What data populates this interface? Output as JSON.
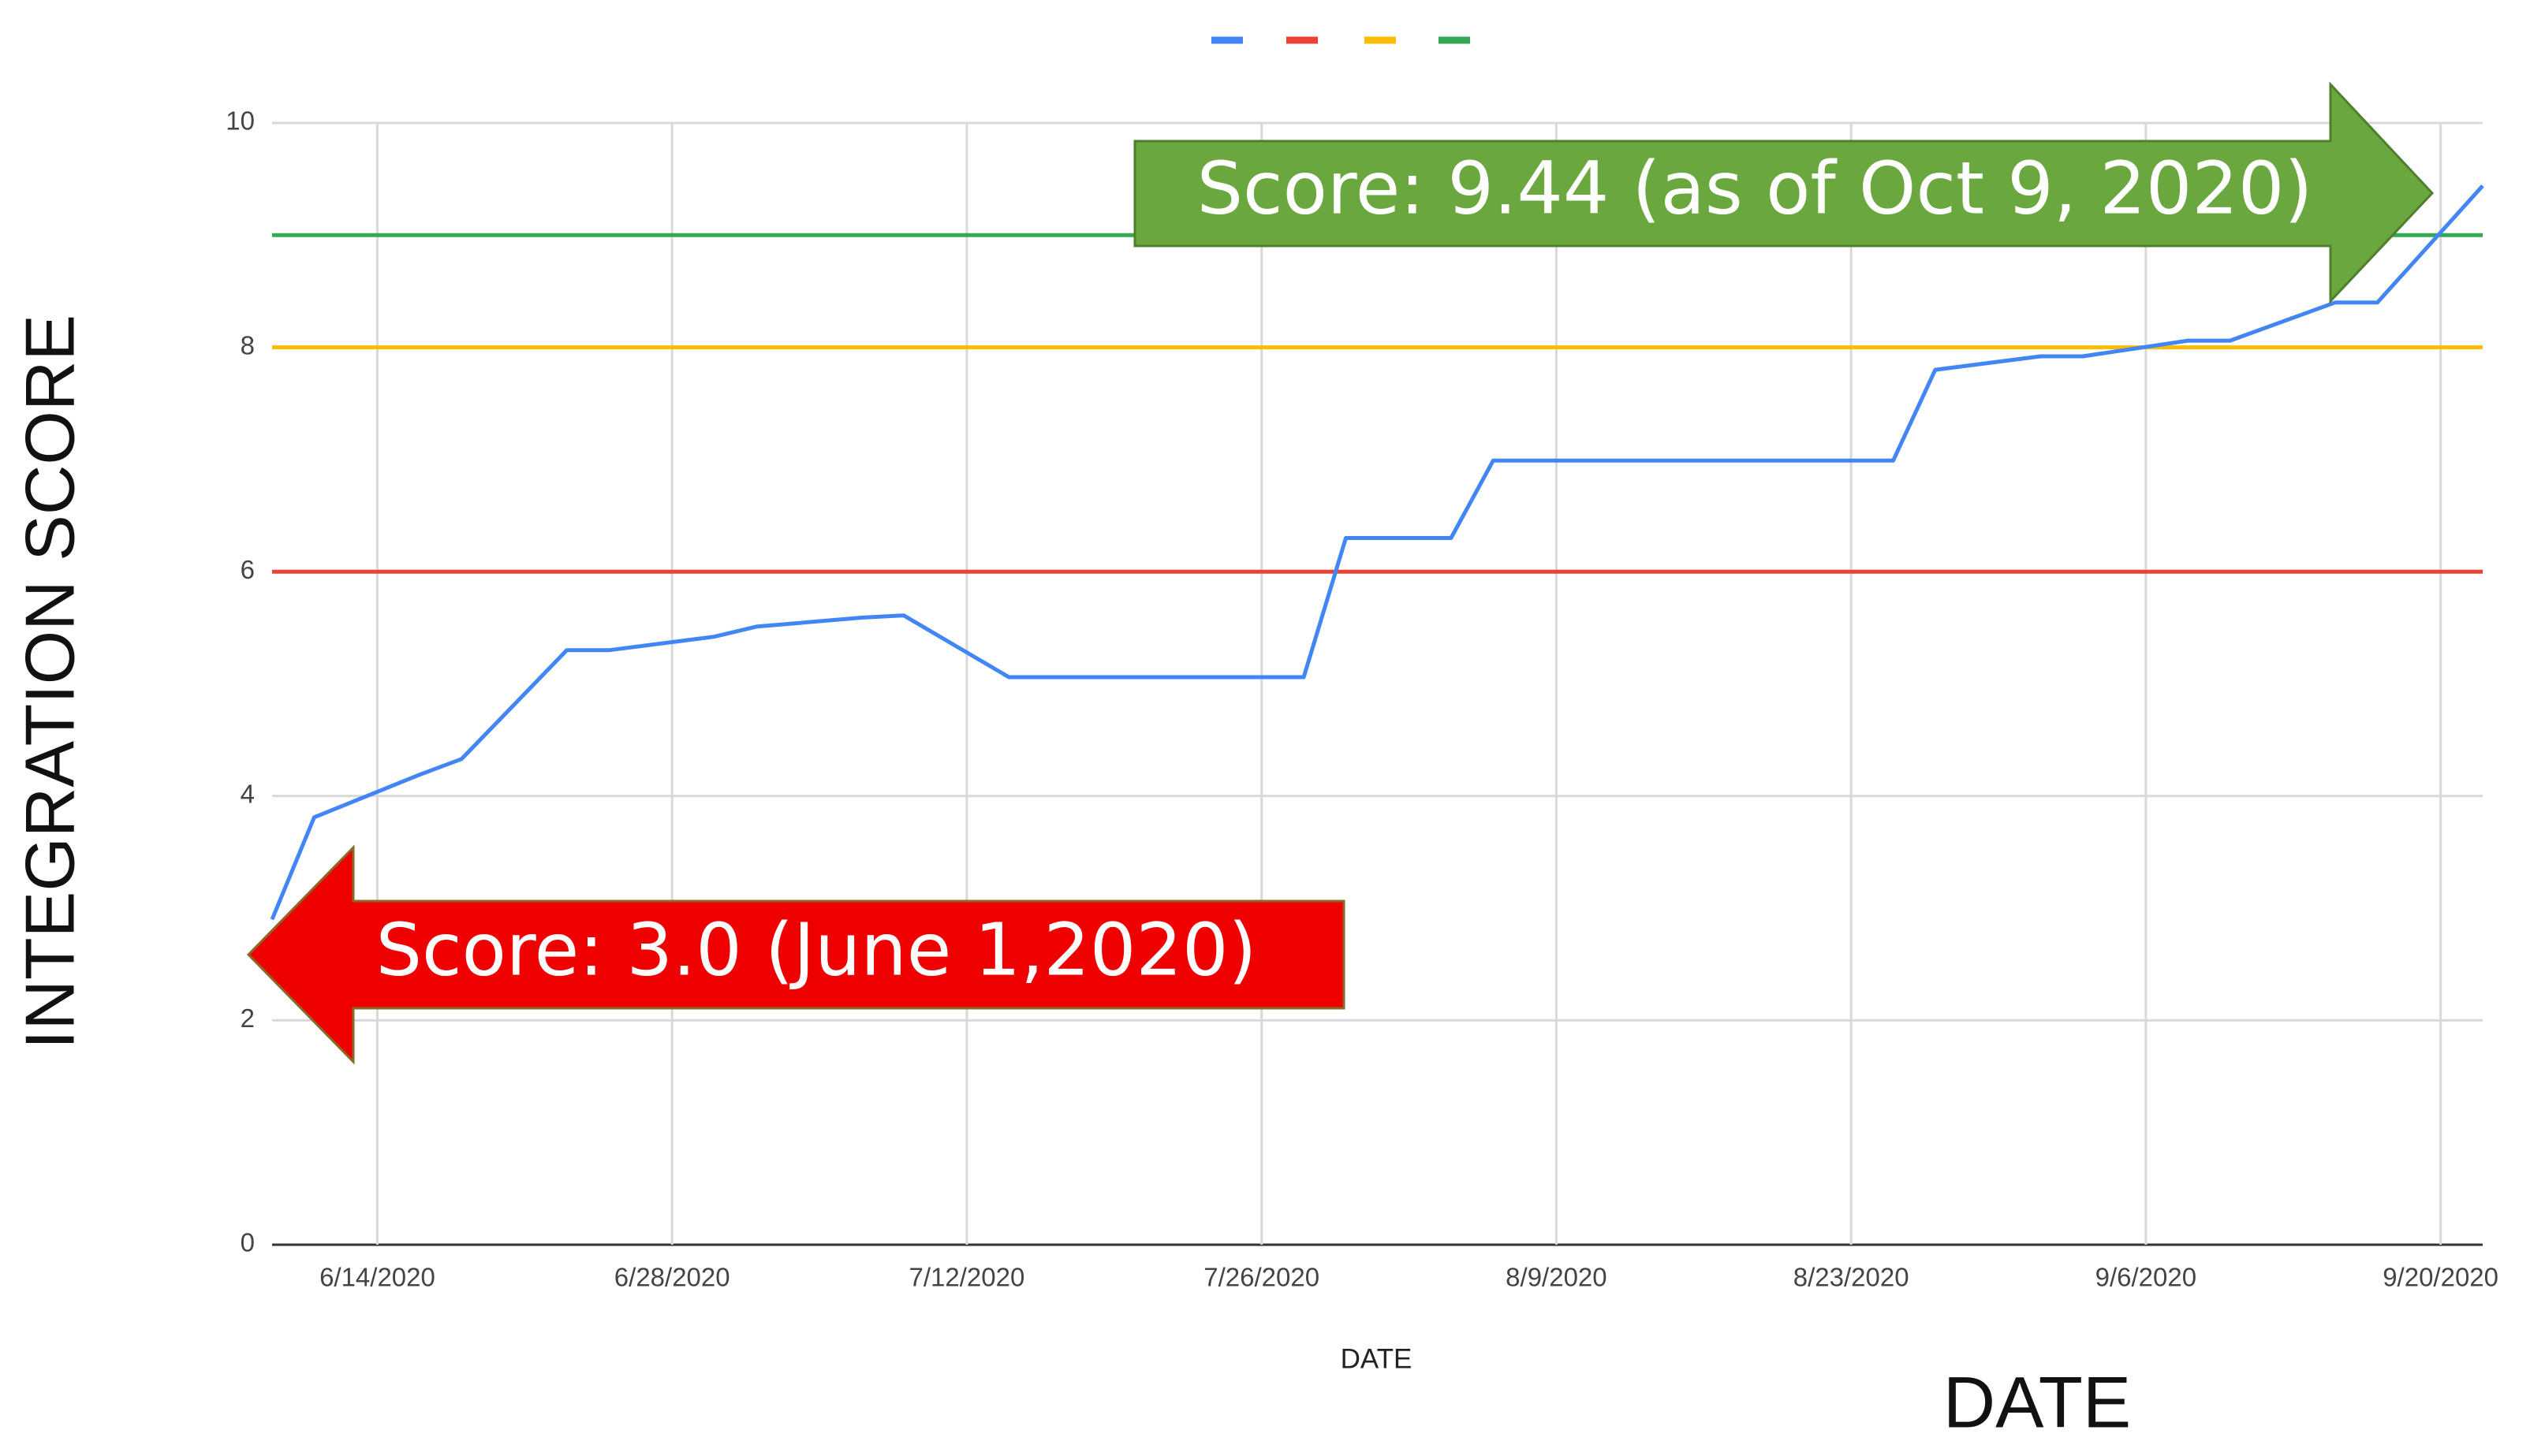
{
  "chart_data": {
    "type": "line",
    "y_label": "INTEGRATION SCORE",
    "x_label": "DATE",
    "x_label_large": "DATE",
    "annotations": [
      "Score: 9.44 (as of Oct 9, 2020)",
      "Score: 3.0 (June 1,2020)"
    ],
    "x": [
      "6/9/2020",
      "6/11/2020",
      "6/16/2020",
      "6/18/2020",
      "6/23/2020",
      "6/25/2020",
      "6/30/2020",
      "7/2/2020",
      "7/7/2020",
      "7/9/2020",
      "7/14/2020",
      "7/28/2020",
      "7/30/2020",
      "8/4/2020",
      "8/6/2020",
      "8/25/2020",
      "8/27/2020",
      "9/1/2020",
      "9/3/2020",
      "9/8/2020",
      "9/10/2020",
      "9/15/2020",
      "9/17/2020",
      "9/22/2020"
    ],
    "series": [
      {
        "color": "#4285f4",
        "values": [
          2.9,
          3.81,
          4.19,
          4.33,
          5.3,
          5.3,
          5.42,
          5.51,
          5.59,
          5.61,
          5.06,
          5.06,
          6.3,
          6.3,
          6.99,
          6.99,
          7.8,
          7.92,
          7.92,
          8.06,
          8.06,
          8.4,
          8.4,
          9.44
        ]
      },
      {
        "color": "#ea4335",
        "values": [
          6,
          6,
          6,
          6,
          6,
          6,
          6,
          6,
          6,
          6,
          6,
          6,
          6,
          6,
          6,
          6,
          6,
          6,
          6,
          6,
          6,
          6,
          6,
          6
        ]
      },
      {
        "color": "#fbbc04",
        "values": [
          8,
          8,
          8,
          8,
          8,
          8,
          8,
          8,
          8,
          8,
          8,
          8,
          8,
          8,
          8,
          8,
          8,
          8,
          8,
          8,
          8,
          8,
          8,
          8
        ]
      },
      {
        "color": "#34a853",
        "values": [
          9,
          9,
          9,
          9,
          9,
          9,
          9,
          9,
          9,
          9,
          9,
          9,
          9,
          9,
          9,
          9,
          9,
          9,
          9,
          9,
          9,
          9,
          9,
          9
        ]
      }
    ],
    "xlim": [
      "6/9/2020",
      "9/22/2020"
    ],
    "xticks": [
      "6/14/2020",
      "6/28/2020",
      "7/12/2020",
      "7/26/2020",
      "8/9/2020",
      "8/23/2020",
      "9/6/2020",
      "9/20/2020"
    ],
    "ylim": [
      0,
      10
    ],
    "yticks": [
      0,
      2,
      4,
      6,
      8,
      10
    ],
    "grid": true
  }
}
